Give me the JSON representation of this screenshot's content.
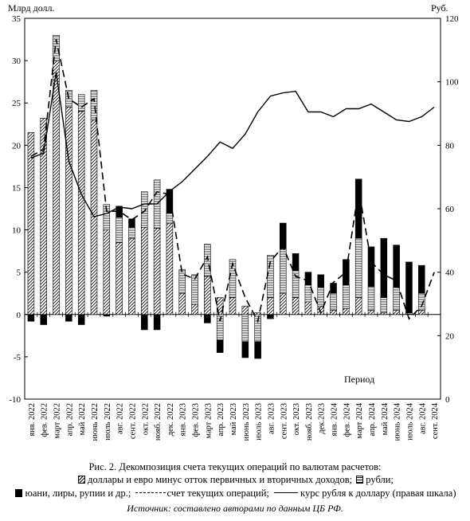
{
  "chart_data": {
    "type": "bar",
    "title": "Рис. 2. Декомпозиция счета текущих операций по валютам расчетов:",
    "ylabel_left": "Млрд долл.",
    "ylabel_right": "Руб.",
    "xlabel": "Период",
    "ylim": [
      -10,
      35
    ],
    "ylim_right": [
      0,
      120
    ],
    "y_ticks": [
      "-10",
      "-5",
      "0",
      "5",
      "10",
      "15",
      "20",
      "25",
      "30",
      "35"
    ],
    "y_right_ticks": [
      "0",
      "20",
      "40",
      "60",
      "80",
      "100",
      "120"
    ],
    "categories": [
      "янв. 2022",
      "фев. 2022",
      "март 2022",
      "апр. 2022",
      "май 2022",
      "июнь 2022",
      "июль 2022",
      "авг. 2022",
      "сент. 2022",
      "окт. 2022",
      "нояб. 2022",
      "дек. 2022",
      "янв. 2023",
      "фев. 2023",
      "март 2023",
      "апр. 2023",
      "май 2023",
      "июнь 2023",
      "июль 2023",
      "авг. 2023",
      "сент. 2023",
      "окт. 2023",
      "нояб. 2023",
      "дек.2023",
      "янв. 2024",
      "фев. 2024",
      "март 2024",
      "апр. 2024",
      "май 2024",
      "июнь 2024",
      "июль 2024",
      "авг. 2024",
      "сент. 2024"
    ],
    "series": [
      {
        "name": "доллары и евро минус отток первичных и вторичных доходов",
        "values": [
          21.5,
          23.2,
          30.0,
          24.5,
          24.0,
          23.0,
          10.0,
          8.5,
          9.0,
          10.3,
          10.2,
          10.8,
          2.5,
          1.2,
          4.5,
          2.0,
          2.0,
          1.0,
          0.2,
          2.0,
          2.5,
          2.0,
          1.5,
          1.0,
          0.5,
          0.7,
          2.0,
          0.5,
          0.2,
          0.5,
          0.0,
          0.5,
          0.0
        ]
      },
      {
        "name": "рубли",
        "values": [
          0.0,
          0.0,
          3.0,
          2.0,
          2.0,
          3.5,
          3.0,
          3.0,
          1.3,
          4.2,
          5.7,
          1.2,
          2.8,
          3.5,
          3.8,
          -3.0,
          4.5,
          -3.2,
          -3.2,
          5.0,
          5.3,
          3.2,
          2.0,
          2.2,
          2.0,
          2.8,
          7.0,
          2.8,
          1.8,
          2.7,
          0.2,
          2.0,
          0.0
        ]
      },
      {
        "name": "юани, лиры, рупии и др.",
        "values": [
          -0.8,
          -1.2,
          0.0,
          -0.8,
          -1.2,
          0.0,
          -0.2,
          1.3,
          1.0,
          -1.8,
          -1.8,
          2.8,
          0.0,
          0.0,
          -1.0,
          -1.5,
          0.0,
          -1.9,
          -2.0,
          -0.5,
          3.0,
          2.0,
          1.5,
          1.5,
          1.2,
          3.0,
          7.0,
          4.7,
          7.0,
          5.0,
          6.0,
          3.3,
          0.0
        ]
      },
      {
        "name": "счет текущих операций",
        "values": [
          18.7,
          19.5,
          32.5,
          25.5,
          24.5,
          25.5,
          12.2,
          12.2,
          11.2,
          12.2,
          14.5,
          14.2,
          4.8,
          4.2,
          6.8,
          -0.8,
          6.0,
          2.0,
          -0.8,
          6.3,
          8.0,
          4.5,
          4.0,
          0.2,
          3.8,
          5.0,
          14.8,
          6.2,
          4.7,
          4.0,
          -0.5,
          1.0,
          5.0
        ]
      },
      {
        "name": "курс рубля к доллару (правая шкала)",
        "values": [
          76.0,
          77.5,
          103.0,
          75.0,
          64.5,
          57.5,
          58.5,
          60.5,
          60.0,
          61.5,
          61.5,
          65.5,
          68.5,
          72.5,
          76.5,
          81.0,
          79.0,
          83.5,
          90.5,
          95.5,
          96.5,
          97.0,
          90.5,
          90.5,
          89.0,
          91.5,
          91.5,
          93.0,
          90.5,
          88.0,
          87.5,
          89.0,
          92.0
        ]
      }
    ]
  },
  "legend": {
    "line1_text": "доллары и евро минус отток первичных и вторичных доходов;",
    "line1_rub": "рубли;",
    "line2_other": "юани, лиры, рупии и др.;",
    "line2_ca": "счет текущих операций;",
    "line2_rate": "курс рубля к доллару (правая шкала)"
  },
  "source": "Источник: составлено авторами по данным ЦБ РФ."
}
